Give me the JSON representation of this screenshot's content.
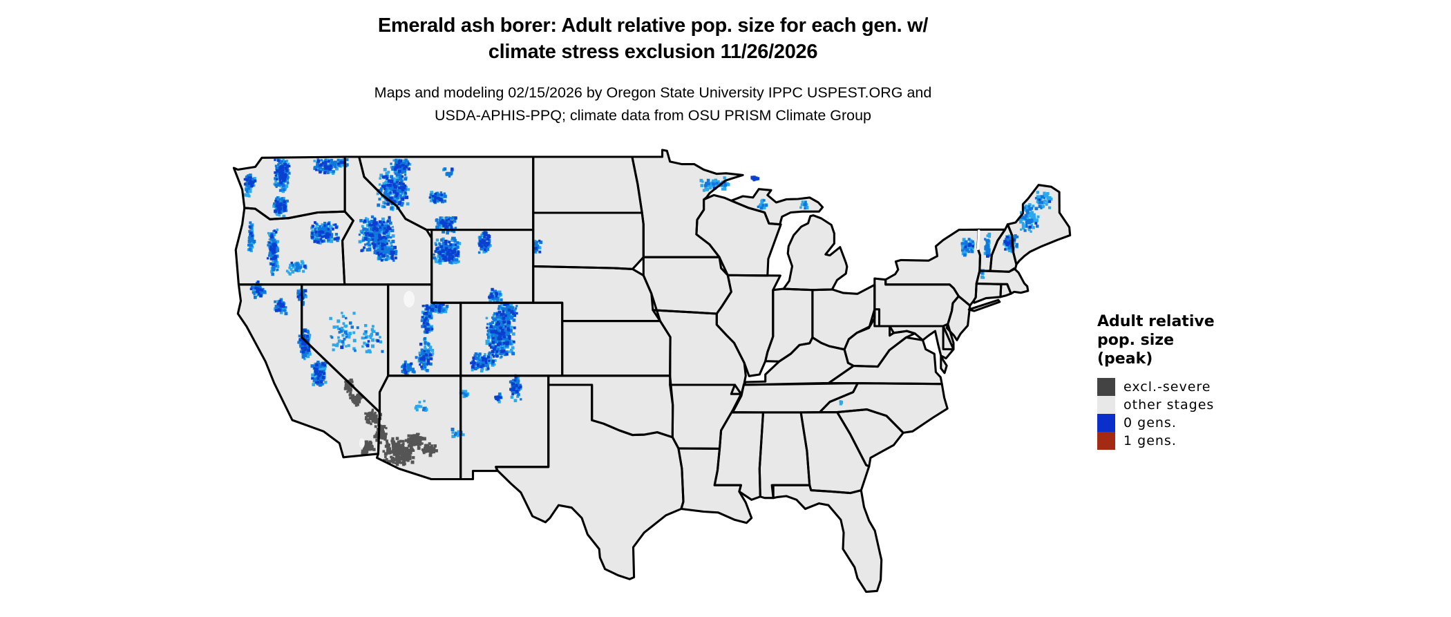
{
  "header": {
    "title_line1": "Emerald ash borer: Adult relative pop. size for each gen. w/",
    "title_line2": "climate stress exclusion 11/26/2026",
    "subtitle_line1": "Maps and modeling 02/15/2026 by Oregon State University IPPC USPEST.ORG and",
    "subtitle_line2": "USDA-APHIS-PPQ; climate data from OSU PRISM Climate Group"
  },
  "legend": {
    "title_lines": [
      "Adult relative",
      "pop. size",
      "(peak)"
    ],
    "items": [
      {
        "label": "excl.-severe",
        "color": "#434343"
      },
      {
        "label": "other stages",
        "color": "#e8e8e8"
      },
      {
        "label": "0 gens.",
        "color": "#0b2fcb"
      },
      {
        "label": "1 gens.",
        "color": "#a52a14"
      }
    ]
  },
  "map": {
    "kind": "Contiguous United States choropleth raster map",
    "colors": {
      "land": "#e8e8e8",
      "border": "#000000",
      "water": "#ffffff",
      "gen0_shades": [
        "#2ca9ec",
        "#1077dd",
        "#0b3fd0"
      ],
      "excl_severe": "#555555"
    },
    "regions": [
      {
        "class": "0 gens.",
        "areas": "Olympics and Cascades (WA/OR), Klamath and Sierra Nevada (CA), scattered Great Basin ranges (NV), central Idaho Rockies, western Montana and Glacier, Yellowstone/Absaroka/Wind River and Bighorn (WY), Wasatch-Uinta and Utah plateaus, Colorado Rockies and San Juans, Sangre de Cristo (NM), Black Hills (SD), Lake Superior north shore (MN), upper Michigan specks, Adirondacks (NY), Green Mountains (VT), White Mountains (NH), western and northern Maine"
      },
      {
        "class": "excl.-severe",
        "areas": "Death Valley and Mojave deserts (SE California) and lower Colorado River valley through southwestern Arizona to Phoenix/Tucson lowlands"
      },
      {
        "class": "other stages",
        "areas": "remainder of the contiguous United States"
      },
      {
        "class": "1 gens.",
        "areas": "not visible on map"
      }
    ]
  }
}
